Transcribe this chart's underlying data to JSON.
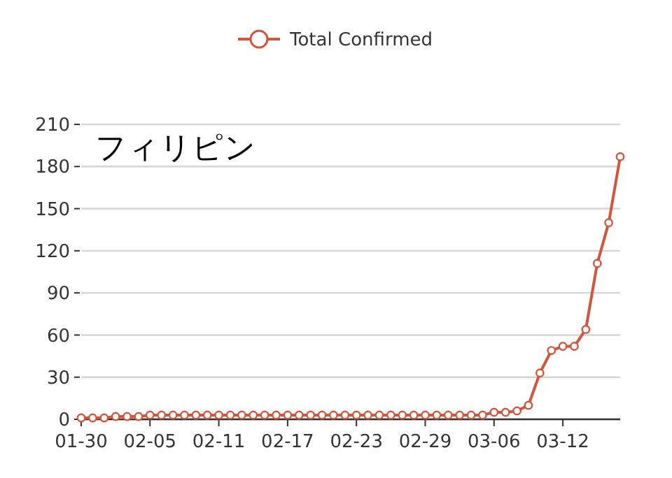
{
  "chart_data": {
    "type": "line",
    "title": "フィリピン",
    "x": [
      "--01-30",
      "--01-31",
      "--02-01",
      "--02-02",
      "--02-03",
      "--02-04",
      "--02-05",
      "--02-06",
      "--02-07",
      "--02-08",
      "--02-09",
      "--02-10",
      "--02-11",
      "--02-12",
      "--02-13",
      "--02-14",
      "--02-15",
      "--02-16",
      "--02-17",
      "--02-18",
      "--02-19",
      "--02-20",
      "--02-21",
      "--02-22",
      "--02-23",
      "--02-24",
      "--02-25",
      "--02-26",
      "--02-27",
      "--02-28",
      "--02-29",
      "--03-01",
      "--03-02",
      "--03-03",
      "--03-04",
      "--03-05",
      "--03-06",
      "--03-07",
      "--03-08",
      "--03-09",
      "--03-10",
      "--03-11",
      "--03-12",
      "--03-13",
      "--03-14",
      "--03-15",
      "--03-16",
      "--03-17"
    ],
    "series": [
      {
        "name": "Total Confirmed",
        "color": "#d4553b",
        "values": [
          1,
          1,
          1,
          2,
          2,
          2,
          3,
          3,
          3,
          3,
          3,
          3,
          3,
          3,
          3,
          3,
          3,
          3,
          3,
          3,
          3,
          3,
          3,
          3,
          3,
          3,
          3,
          3,
          3,
          3,
          3,
          3,
          3,
          3,
          3,
          3,
          5,
          5,
          6,
          10,
          33,
          49,
          52,
          52,
          64,
          111,
          140,
          187
        ]
      }
    ],
    "xlim": [
      "--01-30",
      "--03-17"
    ],
    "xticks": [
      {
        "value": "--01-30",
        "label": "01-30"
      },
      {
        "value": "--02-05",
        "label": "02-05"
      },
      {
        "value": "--02-11",
        "label": "02-11"
      },
      {
        "value": "--02-17",
        "label": "02-17"
      },
      {
        "value": "--02-23",
        "label": "02-23"
      },
      {
        "value": "--02-29",
        "label": "02-29"
      },
      {
        "value": "--03-06",
        "label": "03-06"
      },
      {
        "value": "--03-12",
        "label": "03-12"
      }
    ],
    "ylim": [
      0,
      210
    ],
    "yticks": [
      0,
      30,
      60,
      90,
      120,
      150,
      180,
      210
    ],
    "grid": "y",
    "legend": "top",
    "marker": "circle",
    "line_style": "solid"
  }
}
